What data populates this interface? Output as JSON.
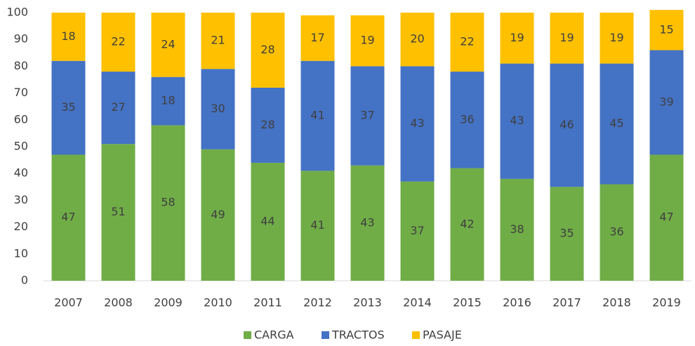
{
  "chart_data": {
    "type": "stacked_bar",
    "categories": [
      "2007",
      "2008",
      "2009",
      "2010",
      "2011",
      "2012",
      "2013",
      "2014",
      "2015",
      "2016",
      "2017",
      "2018",
      "2019"
    ],
    "series": [
      {
        "name": "CARGA",
        "color": "#70ad47",
        "values": [
          47,
          51,
          58,
          49,
          44,
          41,
          43,
          37,
          42,
          38,
          35,
          36,
          47
        ]
      },
      {
        "name": "TRACTOS",
        "color": "#4472c4",
        "values": [
          35,
          27,
          18,
          30,
          28,
          41,
          37,
          43,
          36,
          43,
          46,
          45,
          39
        ]
      },
      {
        "name": "PASAJE",
        "color": "#ffc000",
        "values": [
          18,
          22,
          24,
          21,
          28,
          17,
          19,
          20,
          22,
          19,
          19,
          19,
          15
        ]
      }
    ],
    "ylim": [
      0,
      100
    ],
    "yticks": [
      0,
      10,
      20,
      30,
      40,
      50,
      60,
      70,
      80,
      90,
      100
    ],
    "grid": false,
    "legend": "bottom"
  }
}
